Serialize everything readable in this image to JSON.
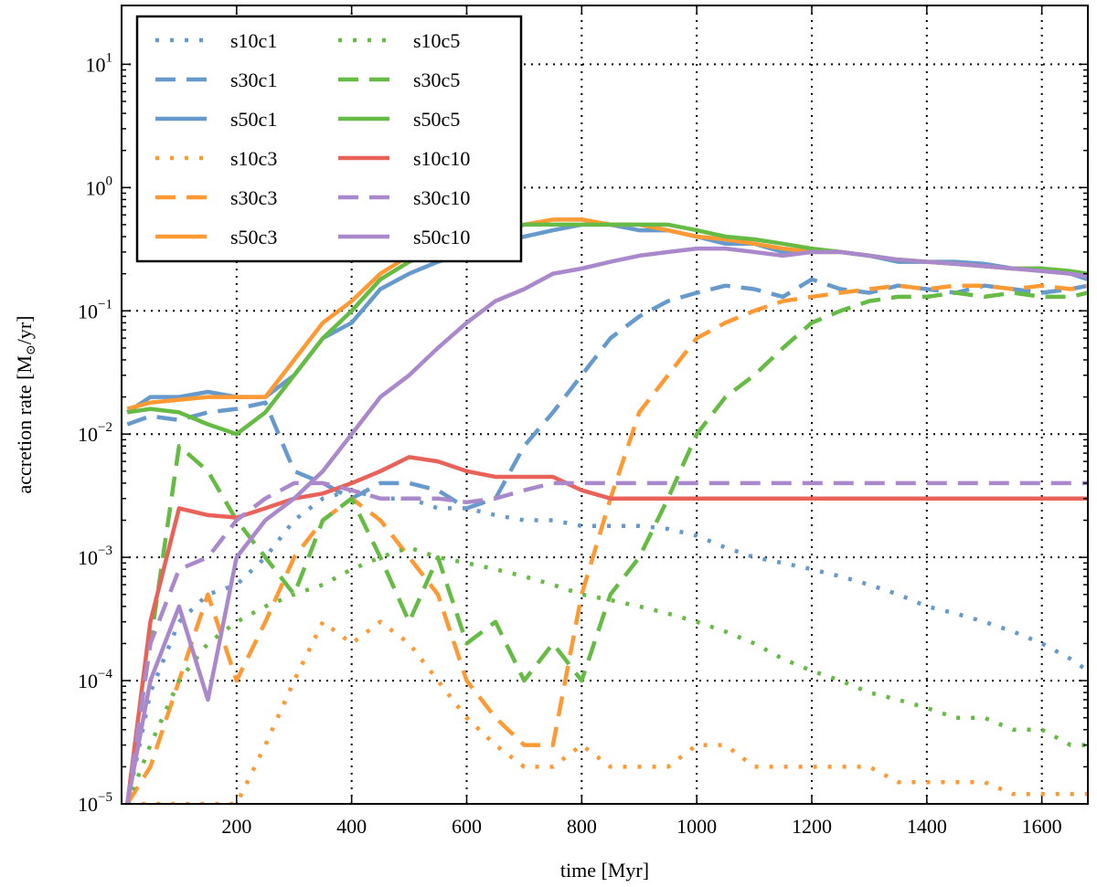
{
  "chart_data": {
    "type": "line",
    "title": "",
    "xlabel": "time [Myr]",
    "ylabel_main": "accretion rate [M",
    "ylabel_sub": "⊙",
    "ylabel_tail": "/yr]",
    "xlim": [
      0,
      1680
    ],
    "ylim": [
      1e-05,
      30
    ],
    "yscale": "log",
    "grid": true,
    "legend_position": "top-left",
    "x_ticks": [
      {
        "value": 200,
        "label": "200"
      },
      {
        "value": 400,
        "label": "400"
      },
      {
        "value": 600,
        "label": "600"
      },
      {
        "value": 800,
        "label": "800"
      },
      {
        "value": 1000,
        "label": "1000"
      },
      {
        "value": 1200,
        "label": "1200"
      },
      {
        "value": 1400,
        "label": "1400"
      },
      {
        "value": 1600,
        "label": "1600"
      }
    ],
    "y_ticks": [
      {
        "value": 1e-05,
        "base": "10",
        "exp": "−5"
      },
      {
        "value": 0.0001,
        "base": "10",
        "exp": "−4"
      },
      {
        "value": 0.001,
        "base": "10",
        "exp": "−3"
      },
      {
        "value": 0.01,
        "base": "10",
        "exp": "−2"
      },
      {
        "value": 0.1,
        "base": "10",
        "exp": "−1"
      },
      {
        "value": 1,
        "base": "10",
        "exp": "0"
      },
      {
        "value": 10,
        "base": "10",
        "exp": "1"
      }
    ],
    "series": [
      {
        "name": "s10c1",
        "color": "#6699cc",
        "style": "dashdot",
        "x": [
          10,
          50,
          100,
          150,
          200,
          250,
          300,
          350,
          400,
          450,
          500,
          550,
          600,
          650,
          700,
          750,
          800,
          850,
          900,
          950,
          1000,
          1050,
          1100,
          1150,
          1200,
          1250,
          1300,
          1350,
          1400,
          1450,
          1500,
          1550,
          1600,
          1650,
          1680
        ],
        "y": [
          1e-05,
          8e-05,
          0.0003,
          0.0005,
          0.0006,
          0.001,
          0.002,
          0.003,
          0.0035,
          0.003,
          0.003,
          0.0025,
          0.0025,
          0.0022,
          0.002,
          0.002,
          0.0018,
          0.0018,
          0.0018,
          0.0017,
          0.0015,
          0.0012,
          0.001,
          0.0009,
          0.0008,
          0.0007,
          0.0006,
          0.0005,
          0.0004,
          0.00035,
          0.0003,
          0.00025,
          0.0002,
          0.00015,
          0.00012
        ]
      },
      {
        "name": "s30c1",
        "color": "#6699cc",
        "style": "dashed",
        "x": [
          10,
          50,
          100,
          150,
          200,
          250,
          300,
          350,
          400,
          450,
          500,
          550,
          600,
          650,
          700,
          750,
          800,
          850,
          900,
          950,
          1000,
          1050,
          1100,
          1150,
          1200,
          1250,
          1300,
          1350,
          1400,
          1450,
          1500,
          1550,
          1600,
          1650,
          1680
        ],
        "y": [
          0.012,
          0.014,
          0.013,
          0.015,
          0.016,
          0.018,
          0.005,
          0.004,
          0.003,
          0.004,
          0.004,
          0.0035,
          0.0025,
          0.003,
          0.008,
          0.015,
          0.03,
          0.06,
          0.09,
          0.12,
          0.14,
          0.16,
          0.15,
          0.13,
          0.18,
          0.15,
          0.14,
          0.16,
          0.15,
          0.14,
          0.16,
          0.15,
          0.14,
          0.15,
          0.16
        ]
      },
      {
        "name": "s50c1",
        "color": "#6699cc",
        "style": "solid",
        "x": [
          10,
          50,
          100,
          150,
          200,
          250,
          300,
          350,
          400,
          450,
          500,
          550,
          600,
          650,
          700,
          750,
          800,
          850,
          900,
          950,
          1000,
          1050,
          1100,
          1150,
          1200,
          1250,
          1300,
          1350,
          1400,
          1450,
          1500,
          1550,
          1600,
          1650,
          1680
        ],
        "y": [
          0.015,
          0.02,
          0.02,
          0.022,
          0.02,
          0.02,
          0.03,
          0.06,
          0.08,
          0.15,
          0.2,
          0.25,
          0.3,
          0.35,
          0.4,
          0.45,
          0.5,
          0.5,
          0.45,
          0.45,
          0.4,
          0.35,
          0.35,
          0.3,
          0.3,
          0.3,
          0.28,
          0.25,
          0.25,
          0.25,
          0.24,
          0.22,
          0.22,
          0.2,
          0.18
        ]
      },
      {
        "name": "s10c3",
        "color": "#ff9933",
        "style": "dashdot",
        "x": [
          10,
          50,
          100,
          150,
          200,
          250,
          300,
          350,
          400,
          450,
          500,
          550,
          600,
          650,
          700,
          750,
          800,
          850,
          900,
          950,
          1000,
          1050,
          1100,
          1150,
          1200,
          1250,
          1300,
          1350,
          1400,
          1450,
          1500,
          1550,
          1600,
          1650,
          1680
        ],
        "y": [
          1e-05,
          1e-05,
          1e-05,
          1e-05,
          1e-05,
          3e-05,
          0.0001,
          0.0003,
          0.0002,
          0.0003,
          0.0002,
          0.0001,
          5e-05,
          3e-05,
          2e-05,
          2e-05,
          3e-05,
          2e-05,
          2e-05,
          2e-05,
          3e-05,
          3e-05,
          2e-05,
          2e-05,
          2e-05,
          2e-05,
          2e-05,
          1.5e-05,
          1.5e-05,
          1.5e-05,
          1.5e-05,
          1.2e-05,
          1.2e-05,
          1.2e-05,
          1.2e-05
        ]
      },
      {
        "name": "s30c3",
        "color": "#ff9933",
        "style": "dashed",
        "x": [
          10,
          50,
          100,
          150,
          200,
          250,
          300,
          350,
          400,
          450,
          500,
          550,
          600,
          650,
          700,
          750,
          800,
          850,
          900,
          950,
          1000,
          1050,
          1100,
          1150,
          1200,
          1250,
          1300,
          1350,
          1400,
          1450,
          1500,
          1550,
          1600,
          1650,
          1680
        ],
        "y": [
          1e-05,
          2e-05,
          0.0001,
          0.0005,
          0.0001,
          0.0003,
          0.001,
          0.002,
          0.003,
          0.002,
          0.001,
          0.0005,
          0.0001,
          5e-05,
          3e-05,
          3e-05,
          0.0005,
          0.003,
          0.015,
          0.03,
          0.06,
          0.08,
          0.1,
          0.12,
          0.13,
          0.14,
          0.15,
          0.16,
          0.15,
          0.16,
          0.16,
          0.15,
          0.16,
          0.15,
          0.16
        ]
      },
      {
        "name": "s50c3",
        "color": "#ff9933",
        "style": "solid",
        "x": [
          10,
          50,
          100,
          150,
          200,
          250,
          300,
          350,
          400,
          450,
          500,
          550,
          600,
          650,
          700,
          750,
          800,
          850,
          900,
          950,
          1000,
          1050,
          1100,
          1150,
          1200,
          1250,
          1300,
          1350,
          1400,
          1450,
          1500,
          1550,
          1600,
          1650,
          1680
        ],
        "y": [
          0.016,
          0.018,
          0.019,
          0.02,
          0.02,
          0.02,
          0.04,
          0.08,
          0.12,
          0.2,
          0.28,
          0.35,
          0.4,
          0.45,
          0.5,
          0.55,
          0.55,
          0.5,
          0.5,
          0.45,
          0.4,
          0.38,
          0.35,
          0.32,
          0.3,
          0.3,
          0.28,
          0.26,
          0.25,
          0.24,
          0.23,
          0.22,
          0.22,
          0.2,
          0.2
        ]
      },
      {
        "name": "s10c5",
        "color": "#66bb44",
        "style": "dashdot",
        "x": [
          10,
          50,
          100,
          150,
          200,
          250,
          300,
          350,
          400,
          450,
          500,
          550,
          600,
          650,
          700,
          750,
          800,
          850,
          900,
          950,
          1000,
          1050,
          1100,
          1150,
          1200,
          1250,
          1300,
          1350,
          1400,
          1450,
          1500,
          1550,
          1600,
          1650,
          1680
        ],
        "y": [
          1e-05,
          3e-05,
          0.0001,
          0.0002,
          0.0003,
          0.0004,
          0.0005,
          0.0006,
          0.0008,
          0.001,
          0.0012,
          0.001,
          0.0009,
          0.0008,
          0.0007,
          0.0006,
          0.0005,
          0.00045,
          0.0004,
          0.00035,
          0.0003,
          0.00025,
          0.0002,
          0.00015,
          0.00012,
          0.0001,
          8e-05,
          7e-05,
          6e-05,
          5e-05,
          5e-05,
          4e-05,
          4e-05,
          3e-05,
          3e-05
        ]
      },
      {
        "name": "s30c5",
        "color": "#66bb44",
        "style": "dashed",
        "x": [
          10,
          50,
          100,
          150,
          200,
          250,
          300,
          350,
          400,
          450,
          500,
          550,
          600,
          650,
          700,
          750,
          800,
          850,
          900,
          950,
          1000,
          1050,
          1100,
          1150,
          1200,
          1250,
          1300,
          1350,
          1400,
          1450,
          1500,
          1550,
          1600,
          1650,
          1680
        ],
        "y": [
          1e-05,
          0.0002,
          0.008,
          0.005,
          0.002,
          0.001,
          0.0005,
          0.002,
          0.003,
          0.001,
          0.0003,
          0.001,
          0.0002,
          0.0003,
          0.0001,
          0.0002,
          0.0001,
          0.0005,
          0.001,
          0.003,
          0.01,
          0.02,
          0.03,
          0.05,
          0.08,
          0.1,
          0.12,
          0.13,
          0.13,
          0.14,
          0.13,
          0.14,
          0.13,
          0.13,
          0.14
        ]
      },
      {
        "name": "s50c5",
        "color": "#66bb44",
        "style": "solid",
        "x": [
          10,
          50,
          100,
          150,
          200,
          250,
          300,
          350,
          400,
          450,
          500,
          550,
          600,
          650,
          700,
          750,
          800,
          850,
          900,
          950,
          1000,
          1050,
          1100,
          1150,
          1200,
          1250,
          1300,
          1350,
          1400,
          1450,
          1500,
          1550,
          1600,
          1650,
          1680
        ],
        "y": [
          0.015,
          0.016,
          0.015,
          0.012,
          0.01,
          0.015,
          0.03,
          0.06,
          0.1,
          0.18,
          0.25,
          0.32,
          0.38,
          0.45,
          0.5,
          0.5,
          0.5,
          0.5,
          0.5,
          0.5,
          0.45,
          0.4,
          0.38,
          0.35,
          0.32,
          0.3,
          0.28,
          0.26,
          0.25,
          0.24,
          0.23,
          0.22,
          0.22,
          0.21,
          0.2
        ]
      },
      {
        "name": "s10c10",
        "color": "#e8625a",
        "style": "solid",
        "x": [
          10,
          50,
          100,
          150,
          200,
          250,
          300,
          350,
          400,
          450,
          500,
          550,
          600,
          650,
          700,
          750,
          800,
          850,
          900,
          950,
          1000,
          1050,
          1100,
          1150,
          1200,
          1250,
          1300,
          1350,
          1400,
          1450,
          1500,
          1550,
          1600,
          1650,
          1680
        ],
        "y": [
          1e-05,
          0.0003,
          0.0025,
          0.0022,
          0.0021,
          0.0025,
          0.003,
          0.0033,
          0.004,
          0.005,
          0.0065,
          0.006,
          0.005,
          0.0045,
          0.0045,
          0.0045,
          0.0035,
          0.003,
          0.003,
          0.003,
          0.003,
          0.003,
          0.003,
          0.003,
          0.003,
          0.003,
          0.003,
          0.003,
          0.003,
          0.003,
          0.003,
          0.003,
          0.003,
          0.003,
          0.003
        ]
      },
      {
        "name": "s30c10",
        "color": "#aa88cc",
        "style": "dashed",
        "x": [
          10,
          50,
          100,
          150,
          200,
          250,
          300,
          350,
          400,
          450,
          500,
          550,
          600,
          650,
          700,
          750,
          800,
          850,
          900,
          950,
          1000,
          1050,
          1100,
          1150,
          1200,
          1250,
          1300,
          1350,
          1400,
          1450,
          1500,
          1550,
          1600,
          1650,
          1680
        ],
        "y": [
          1e-05,
          0.0002,
          0.0008,
          0.001,
          0.002,
          0.003,
          0.004,
          0.004,
          0.0035,
          0.003,
          0.003,
          0.003,
          0.0028,
          0.003,
          0.0035,
          0.004,
          0.004,
          0.004,
          0.004,
          0.004,
          0.004,
          0.004,
          0.004,
          0.004,
          0.004,
          0.004,
          0.004,
          0.004,
          0.004,
          0.004,
          0.004,
          0.004,
          0.004,
          0.004,
          0.004
        ]
      },
      {
        "name": "s50c10",
        "color": "#aa88cc",
        "style": "solid",
        "x": [
          10,
          50,
          100,
          150,
          200,
          250,
          300,
          350,
          400,
          450,
          500,
          550,
          600,
          650,
          700,
          750,
          800,
          850,
          900,
          950,
          1000,
          1050,
          1100,
          1150,
          1200,
          1250,
          1300,
          1350,
          1400,
          1450,
          1500,
          1550,
          1600,
          1650,
          1680
        ],
        "y": [
          1e-05,
          0.0001,
          0.0004,
          7e-05,
          0.001,
          0.002,
          0.003,
          0.005,
          0.01,
          0.02,
          0.03,
          0.05,
          0.08,
          0.12,
          0.15,
          0.2,
          0.22,
          0.25,
          0.28,
          0.3,
          0.32,
          0.32,
          0.3,
          0.28,
          0.3,
          0.3,
          0.28,
          0.26,
          0.25,
          0.24,
          0.23,
          0.22,
          0.21,
          0.2,
          0.19
        ]
      }
    ],
    "legend": [
      {
        "name": "s10c1",
        "color": "#6699cc",
        "style": "dashdot"
      },
      {
        "name": "s30c1",
        "color": "#6699cc",
        "style": "dashed"
      },
      {
        "name": "s50c1",
        "color": "#6699cc",
        "style": "solid"
      },
      {
        "name": "s10c3",
        "color": "#ff9933",
        "style": "dashdot"
      },
      {
        "name": "s30c3",
        "color": "#ff9933",
        "style": "dashed"
      },
      {
        "name": "s50c3",
        "color": "#ff9933",
        "style": "solid"
      },
      {
        "name": "s10c5",
        "color": "#66bb44",
        "style": "dashdot"
      },
      {
        "name": "s30c5",
        "color": "#66bb44",
        "style": "dashed"
      },
      {
        "name": "s50c5",
        "color": "#66bb44",
        "style": "solid"
      },
      {
        "name": "s10c10",
        "color": "#e8625a",
        "style": "solid"
      },
      {
        "name": "s30c10",
        "color": "#aa88cc",
        "style": "dashed"
      },
      {
        "name": "s50c10",
        "color": "#aa88cc",
        "style": "solid"
      }
    ]
  }
}
